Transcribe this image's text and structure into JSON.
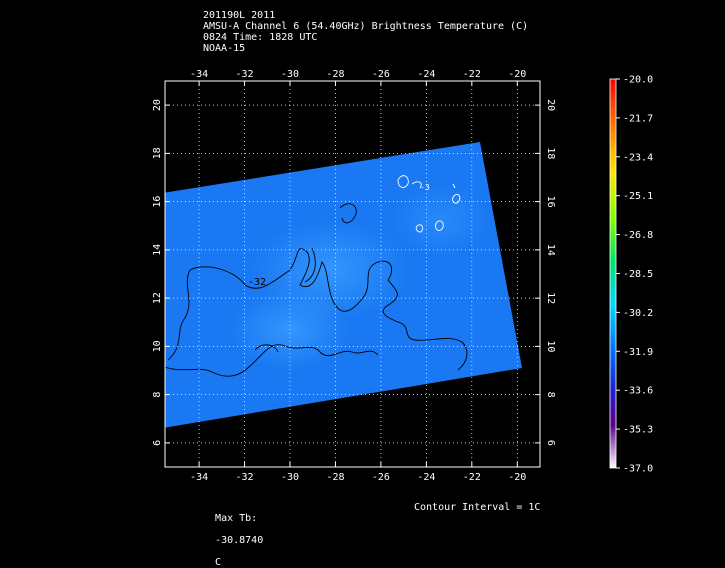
{
  "header": {
    "line1": "201190L 2011",
    "line2": "AMSU-A Channel 6 (54.40GHz) Brightness Temperature (C)",
    "line3": "0824 Time: 1828 UTC",
    "line4": "NOAA-15"
  },
  "map": {
    "lon_range": [
      -35.5,
      -19.0
    ],
    "lat_range": [
      5.0,
      21.0
    ],
    "lon_ticks": [
      "-34",
      "-32",
      "-30",
      "-28",
      "-26",
      "-24",
      "-22",
      "-20"
    ],
    "lat_ticks": [
      "6",
      "8",
      "10",
      "12",
      "14",
      "16",
      "18",
      "20"
    ],
    "lon_tick_values": [
      -34,
      -32,
      -30,
      -28,
      -26,
      -24,
      -22,
      -20
    ],
    "lat_tick_values": [
      6,
      8,
      10,
      12,
      14,
      16,
      18,
      20
    ],
    "grid": true,
    "contour_label": "-32",
    "contour_label_small": "-3"
  },
  "colorbar": {
    "labels": [
      "-20.0",
      "-21.7",
      "-23.4",
      "-25.1",
      "-26.8",
      "-28.5",
      "-30.2",
      "-31.9",
      "-33.6",
      "-35.3",
      "-37.0"
    ],
    "max": -20.0,
    "min": -37.0
  },
  "footer": {
    "max_tb_label": "Max Tb:",
    "max_tb_value": "-30.8740",
    "max_tb_unit": "C",
    "contour_interval": "Contour Interval = 1C"
  }
}
